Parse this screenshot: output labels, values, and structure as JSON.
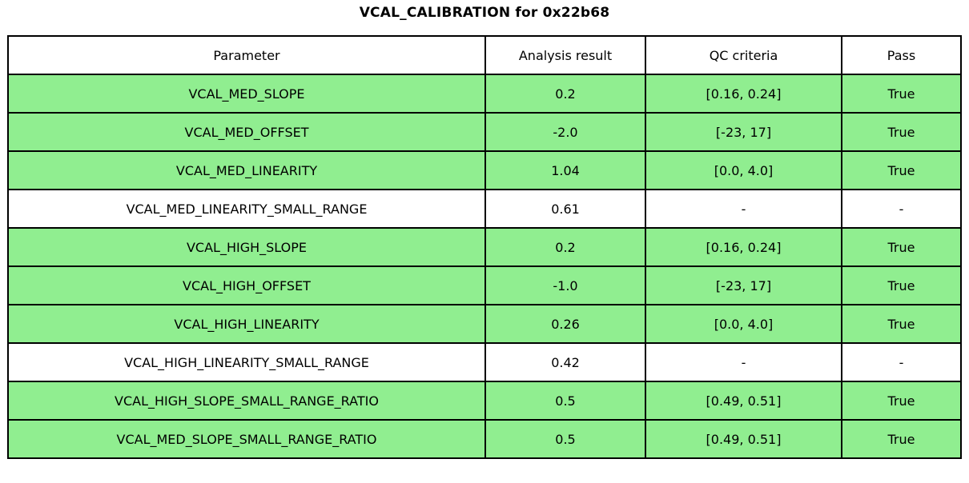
{
  "title": "VCAL_CALIBRATION for 0x22b68",
  "colors": {
    "pass_row_green": "#90EE90",
    "border_black": "#000000",
    "background_white": "#FFFFFF"
  },
  "chart_data": {
    "type": "table",
    "title": "VCAL_CALIBRATION for 0x22b68",
    "columns": [
      "Parameter",
      "Analysis result",
      "QC criteria",
      "Pass"
    ],
    "rows": [
      {
        "parameter": "VCAL_MED_SLOPE",
        "result": "0.2",
        "criteria": "[0.16, 0.24]",
        "pass": "True",
        "highlighted": true
      },
      {
        "parameter": "VCAL_MED_OFFSET",
        "result": "-2.0",
        "criteria": "[-23, 17]",
        "pass": "True",
        "highlighted": true
      },
      {
        "parameter": "VCAL_MED_LINEARITY",
        "result": "1.04",
        "criteria": "[0.0, 4.0]",
        "pass": "True",
        "highlighted": true
      },
      {
        "parameter": "VCAL_MED_LINEARITY_SMALL_RANGE",
        "result": "0.61",
        "criteria": "-",
        "pass": "-",
        "highlighted": false
      },
      {
        "parameter": "VCAL_HIGH_SLOPE",
        "result": "0.2",
        "criteria": "[0.16, 0.24]",
        "pass": "True",
        "highlighted": true
      },
      {
        "parameter": "VCAL_HIGH_OFFSET",
        "result": "-1.0",
        "criteria": "[-23, 17]",
        "pass": "True",
        "highlighted": true
      },
      {
        "parameter": "VCAL_HIGH_LINEARITY",
        "result": "0.26",
        "criteria": "[0.0, 4.0]",
        "pass": "True",
        "highlighted": true
      },
      {
        "parameter": "VCAL_HIGH_LINEARITY_SMALL_RANGE",
        "result": "0.42",
        "criteria": "-",
        "pass": "-",
        "highlighted": false
      },
      {
        "parameter": "VCAL_HIGH_SLOPE_SMALL_RANGE_RATIO",
        "result": "0.5",
        "criteria": "[0.49, 0.51]",
        "pass": "True",
        "highlighted": true
      },
      {
        "parameter": "VCAL_MED_SLOPE_SMALL_RANGE_RATIO",
        "result": "0.5",
        "criteria": "[0.49, 0.51]",
        "pass": "True",
        "highlighted": true
      }
    ],
    "legend": "green row background indicates QC pass",
    "layout": {
      "grid": true,
      "all_cells_bordered": true,
      "text_align": "center"
    }
  }
}
